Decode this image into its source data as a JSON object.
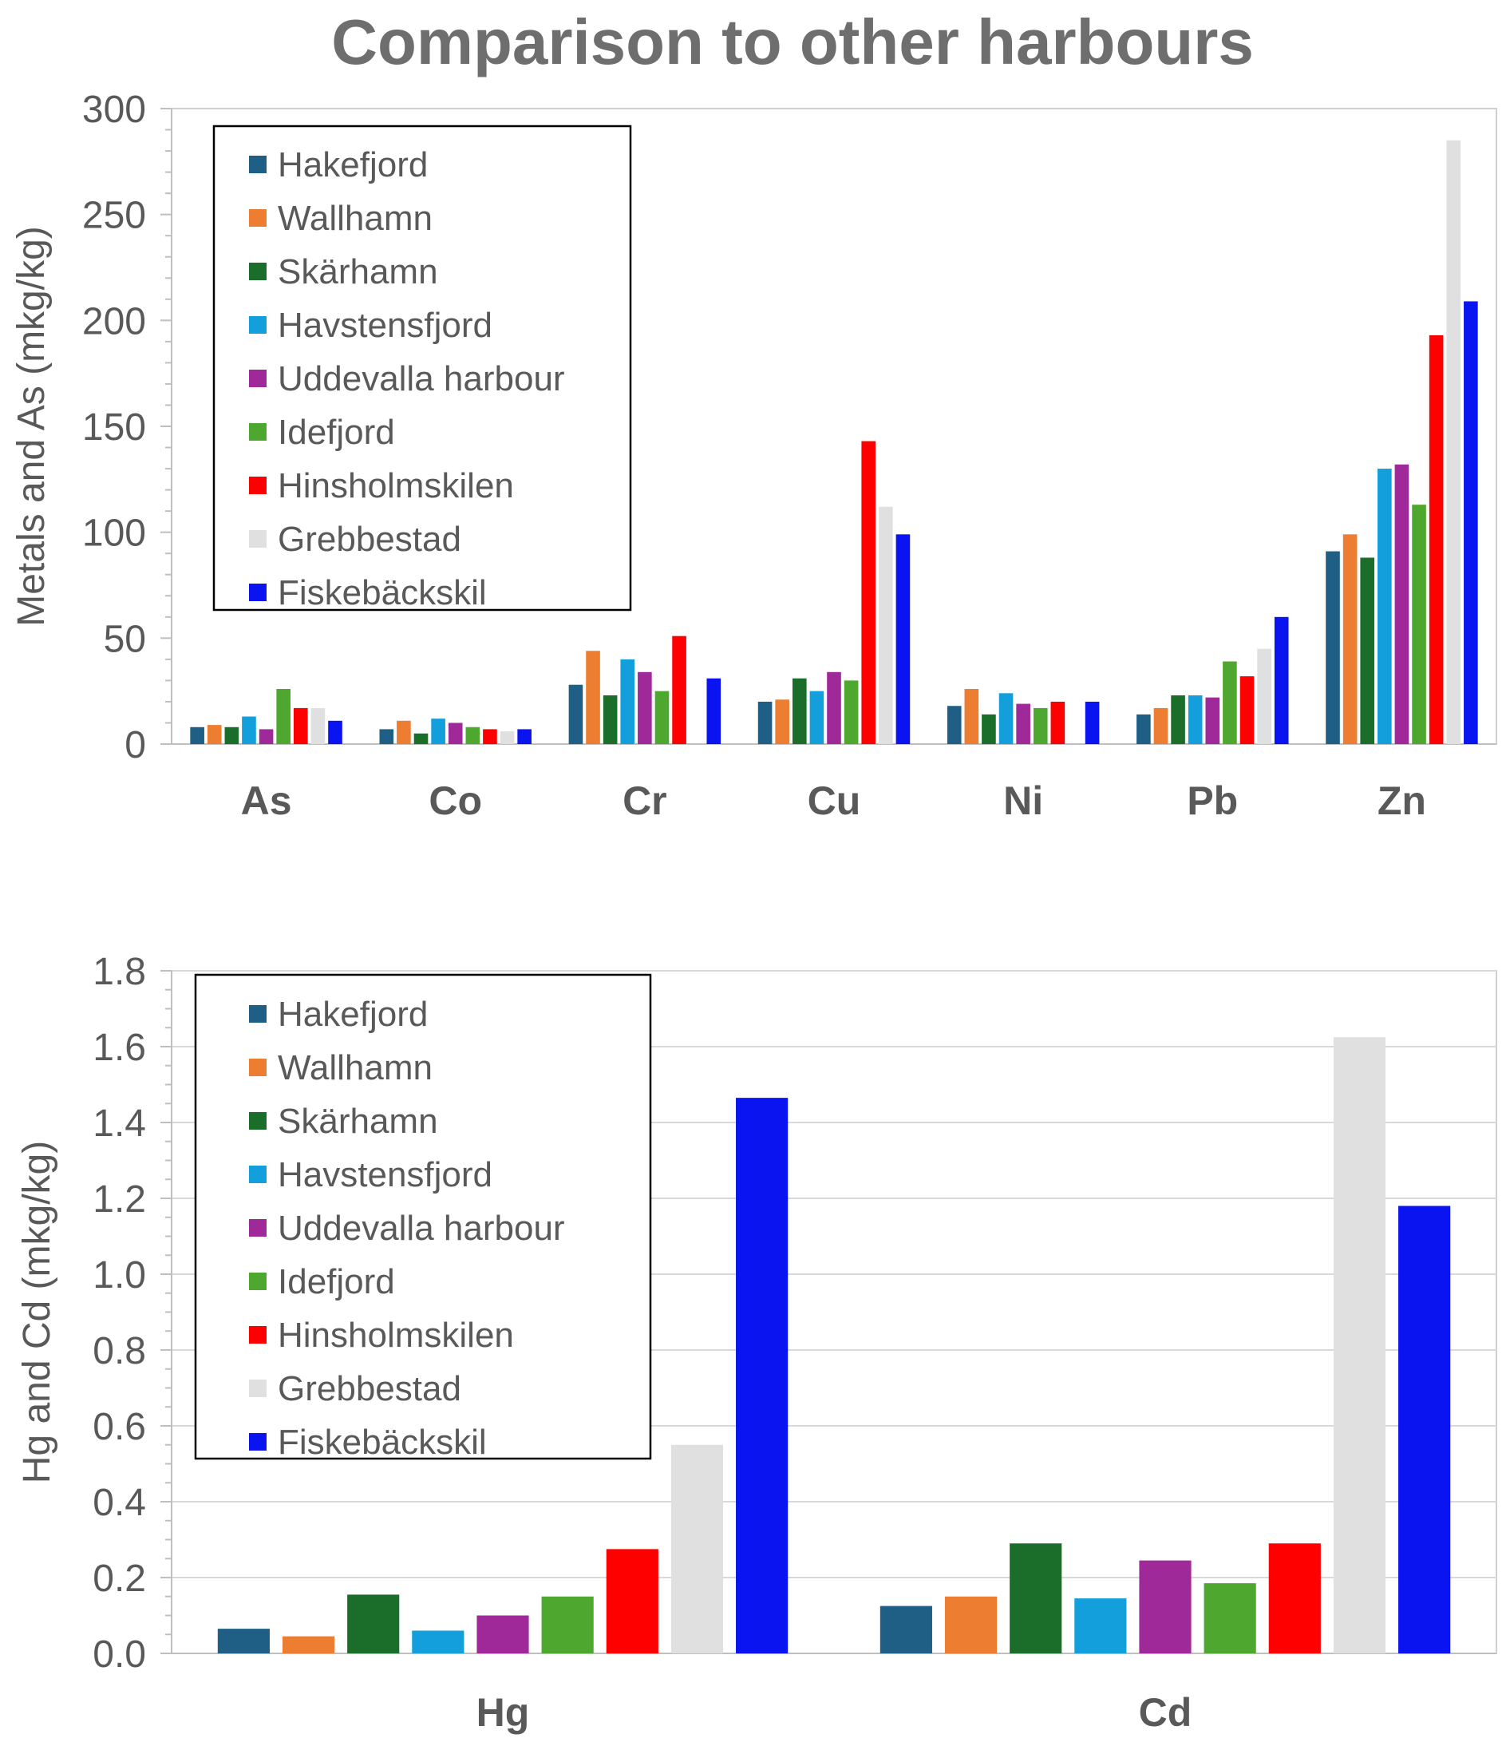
{
  "title": "Comparison to other harbours",
  "chart_data": [
    {
      "type": "bar",
      "ylabel": "Metals and As (mkg/kg)",
      "xlabel": "",
      "ylim": [
        0,
        300
      ],
      "yticks": [
        "0",
        "50",
        "100",
        "150",
        "200",
        "250",
        "300"
      ],
      "grid": false,
      "legend_position": "top-left",
      "categories": [
        "As",
        "Co",
        "Cr",
        "Cu",
        "Ni",
        "Pb",
        "Zn"
      ],
      "series": [
        {
          "name": "Hakefjord",
          "color": "#1f5f85",
          "values": [
            8,
            7,
            28,
            20,
            18,
            14,
            91
          ]
        },
        {
          "name": "Wallhamn",
          "color": "#ed7d31",
          "values": [
            9,
            11,
            44,
            21,
            26,
            17,
            99
          ]
        },
        {
          "name": "Skärhamn",
          "color": "#1a6e2a",
          "values": [
            8,
            5,
            23,
            31,
            14,
            23,
            88
          ]
        },
        {
          "name": "Havstensfjord",
          "color": "#129fdb",
          "values": [
            13,
            12,
            40,
            25,
            24,
            23,
            130
          ]
        },
        {
          "name": "Uddevalla harbour",
          "color": "#a0299a",
          "values": [
            7,
            10,
            34,
            34,
            19,
            22,
            132
          ]
        },
        {
          "name": "Idefjord",
          "color": "#4ea72e",
          "values": [
            26,
            8,
            25,
            30,
            17,
            39,
            113
          ]
        },
        {
          "name": "Hinsholmskilen",
          "color": "#ff0000",
          "values": [
            17,
            7,
            51,
            143,
            20,
            32,
            193
          ]
        },
        {
          "name": "Grebbestad",
          "color": "#e0e0e0",
          "values": [
            17,
            6,
            null,
            112,
            null,
            45,
            285
          ]
        },
        {
          "name": "Fiskebäckskil",
          "color": "#0a14f0",
          "values": [
            11,
            7,
            31,
            99,
            20,
            60,
            209
          ]
        }
      ]
    },
    {
      "type": "bar",
      "ylabel": "Hg and Cd  (mkg/kg)",
      "xlabel": "",
      "ylim": [
        0,
        1.8
      ],
      "yticks": [
        "0.0",
        "0.2",
        "0.4",
        "0.6",
        "0.8",
        "1.0",
        "1.2",
        "1.4",
        "1.6",
        "1.8"
      ],
      "grid": true,
      "legend_position": "top-left",
      "categories": [
        "Hg",
        "Cd"
      ],
      "series": [
        {
          "name": "Hakefjord",
          "color": "#1f5f85",
          "values": [
            0.065,
            0.125
          ]
        },
        {
          "name": "Wallhamn",
          "color": "#ed7d31",
          "values": [
            0.045,
            0.15
          ]
        },
        {
          "name": "Skärhamn",
          "color": "#1a6e2a",
          "values": [
            0.155,
            0.29
          ]
        },
        {
          "name": "Havstensfjord",
          "color": "#129fdb",
          "values": [
            0.06,
            0.145
          ]
        },
        {
          "name": "Uddevalla harbour",
          "color": "#a0299a",
          "values": [
            0.1,
            0.245
          ]
        },
        {
          "name": "Idefjord",
          "color": "#4ea72e",
          "values": [
            0.15,
            0.185
          ]
        },
        {
          "name": "Hinsholmskilen",
          "color": "#ff0000",
          "values": [
            0.275,
            0.29
          ]
        },
        {
          "name": "Grebbestad",
          "color": "#e0e0e0",
          "values": [
            0.55,
            1.625
          ]
        },
        {
          "name": "Fiskebäckskil",
          "color": "#0a14f0",
          "values": [
            1.465,
            1.18
          ]
        }
      ]
    }
  ]
}
